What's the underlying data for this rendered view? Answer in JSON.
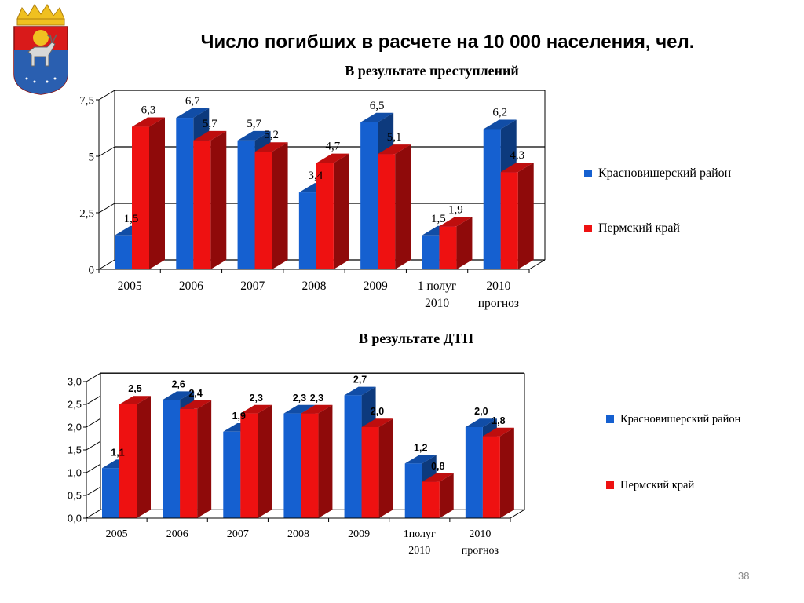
{
  "slide": {
    "title": "Число погибших в расчете на 10 000 населения, чел.",
    "page_number": "38"
  },
  "emblem": {
    "icon": "coat-of-arms-icon"
  },
  "colors": {
    "blue": "#1560d0",
    "red": "#ee1111",
    "axis": "#000000",
    "grid": "#000000"
  },
  "chart_data": [
    {
      "type": "bar",
      "title": "В результате преступлений",
      "categories": [
        "2005",
        "2006",
        "2007",
        "2008",
        "2009",
        "1 полуг\n2010",
        "2010\nпрогноз"
      ],
      "series": [
        {
          "name": "Красновишерский район",
          "values": [
            1.5,
            6.7,
            5.7,
            3.4,
            6.5,
            1.5,
            6.2
          ],
          "labels": [
            "1,5",
            "6,7",
            "5,7",
            "3,4",
            "6,5",
            "1,5",
            "6,2"
          ]
        },
        {
          "name": "Пермский край",
          "values": [
            6.3,
            5.7,
            5.2,
            4.7,
            5.1,
            1.9,
            4.3
          ],
          "labels": [
            "6,3",
            "5,7",
            "5,2",
            "4,7",
            "5,1",
            "1,9",
            "4,3"
          ]
        }
      ],
      "y_ticks": [
        "0",
        "2,5",
        "5",
        "7,5"
      ],
      "ylim": [
        0,
        7.5
      ],
      "grid": true,
      "legend": "right"
    },
    {
      "type": "bar",
      "title": "В результате ДТП",
      "categories": [
        "2005",
        "2006",
        "2007",
        "2008",
        "2009",
        "1полуг\n2010",
        "2010\nпрогноз"
      ],
      "series": [
        {
          "name": "Красновишерский район",
          "values": [
            1.1,
            2.6,
            1.9,
            2.3,
            2.7,
            1.2,
            2.0
          ],
          "labels": [
            "1,1",
            "2,6",
            "1,9",
            "2,3",
            "2,7",
            "1,2",
            "2,0"
          ]
        },
        {
          "name": "Пермский край",
          "values": [
            2.5,
            2.4,
            2.3,
            2.3,
            2.0,
            0.8,
            1.8
          ],
          "labels": [
            "2,5",
            "2,4",
            "2,3",
            "2,3",
            "2,0",
            "0,8",
            "1,8"
          ]
        }
      ],
      "y_ticks": [
        "0,0",
        "0,5",
        "1,0",
        "1,5",
        "2,0",
        "2,5",
        "3,0"
      ],
      "ylim": [
        0,
        3
      ],
      "grid": false,
      "legend": "right"
    }
  ]
}
